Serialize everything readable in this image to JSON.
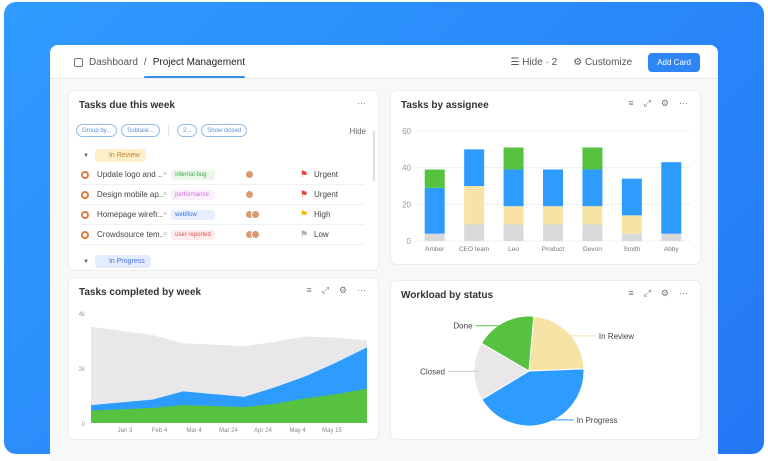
{
  "header": {
    "breadcrumb_root": "Dashboard",
    "breadcrumb_current": "Project Management",
    "hide_label": "Hide · 2",
    "customize_label": "Customize",
    "add_card_label": "Add Card"
  },
  "tasks_card": {
    "title": "Tasks due this week",
    "filters": [
      "Group by...",
      "Subtask...",
      "2...",
      "Show closed"
    ],
    "hide_label": "Hide",
    "group_review": "In Review",
    "group_progress": "In Progress",
    "rows": [
      {
        "name": "Update logo and ...",
        "tag": "internal bug",
        "tag_color": "#3aa845",
        "tag_bg": "#eaf7ea",
        "priority": "Urgent",
        "flag": "#e0413a",
        "avatars": 1
      },
      {
        "name": "Design mobile ap...",
        "tag": "performance",
        "tag_color": "#d070e0",
        "tag_bg": "#fbeefd",
        "priority": "Urgent",
        "flag": "#e0413a",
        "avatars": 1
      },
      {
        "name": "Homepage wirefr...",
        "tag": "webflow",
        "tag_color": "#3b6fd8",
        "tag_bg": "#e6efff",
        "priority": "High",
        "flag": "#f5b800",
        "avatars": 2
      },
      {
        "name": "Crowdsource tem...",
        "tag": "user reported",
        "tag_color": "#e05050",
        "tag_bg": "#fdecec",
        "priority": "Low",
        "flag": "#aaaaaa",
        "avatars": 2
      }
    ]
  },
  "assignee_card": {
    "title": "Tasks by assignee"
  },
  "completed_card": {
    "title": "Tasks completed by week"
  },
  "workload_card": {
    "title": "Workload by status"
  },
  "chart_data": [
    {
      "type": "bar",
      "stacked": true,
      "title": "Tasks by assignee",
      "categories": [
        "Amber",
        "CEO team",
        "Leo",
        "Product",
        "Devon",
        "Smith",
        "Abby"
      ],
      "ylim": [
        0,
        60
      ],
      "yticks": [
        "0",
        "20",
        "40",
        "60"
      ],
      "grid": true,
      "series": [
        {
          "color": "#d9d9d9",
          "values": [
            4,
            9,
            9,
            9,
            9,
            4,
            4
          ]
        },
        {
          "color": "#f8e3a6",
          "values": [
            0,
            21,
            10,
            10,
            10,
            10,
            0
          ]
        },
        {
          "color": "#2e9cff",
          "values": [
            25,
            20,
            20,
            20,
            20,
            20,
            39
          ]
        },
        {
          "color": "#57c140",
          "values": [
            10,
            0,
            12,
            0,
            12,
            0,
            0
          ]
        }
      ]
    },
    {
      "type": "area",
      "stacked": false,
      "title": "Tasks completed by week",
      "xticks": [
        "Jan 3",
        "Feb 4",
        "Mar 4",
        "Mar 24",
        "Apr 24",
        "May 4",
        "May 15"
      ],
      "yticks": [
        "0",
        "2k",
        "4k"
      ],
      "ylim": [
        0,
        4000
      ],
      "series": [
        {
          "color": "#e8e8ea",
          "values": [
            3500,
            3350,
            3200,
            2900,
            2850,
            2800,
            2950,
            3150,
            3100,
            3000
          ]
        },
        {
          "color": "#2e9cff",
          "values": [
            650,
            750,
            850,
            1150,
            1050,
            950,
            1300,
            1700,
            2200,
            2750
          ]
        },
        {
          "color": "#57c140",
          "values": [
            450,
            500,
            550,
            650,
            620,
            580,
            700,
            900,
            1050,
            1250
          ]
        }
      ]
    },
    {
      "type": "pie",
      "title": "Workload by status",
      "slices": [
        {
          "label": "In Review",
          "value": 23,
          "color": "#f8e3a6"
        },
        {
          "label": "In Progress",
          "value": 42,
          "color": "#2e9cff"
        },
        {
          "label": "Closed",
          "value": 17,
          "color": "#e8e8ea"
        },
        {
          "label": "Done",
          "value": 18,
          "color": "#57c140"
        }
      ]
    }
  ]
}
